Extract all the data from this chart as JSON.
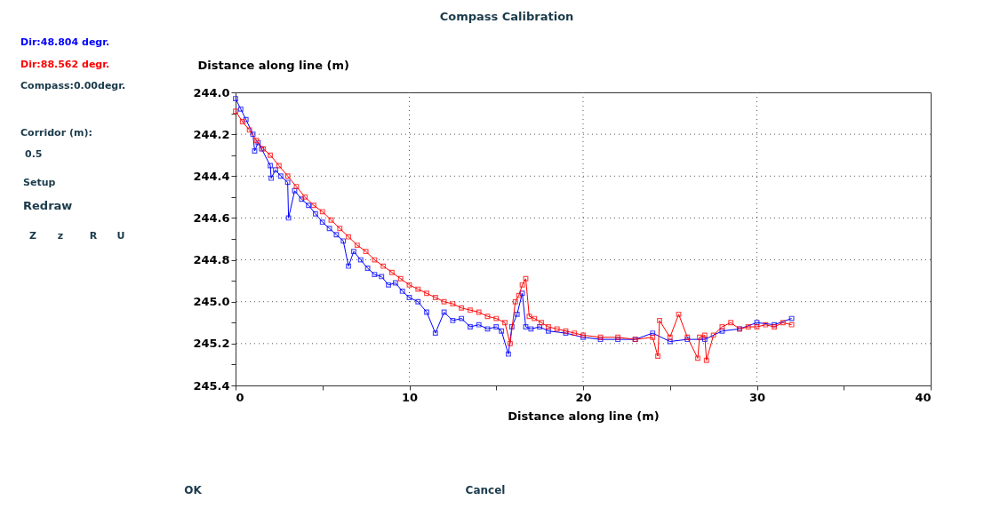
{
  "chart_data": {
    "type": "line",
    "title": "Compass Calibration",
    "xlabel": "Distance along line (m)",
    "ylabel": "Distance along line (m)",
    "xlim": [
      0,
      40
    ],
    "xticks": [
      0,
      {
        "value": 5,
        "label": null
      },
      10,
      {
        "value": 15,
        "label": null
      },
      20,
      {
        "value": 25,
        "label": null
      },
      30,
      {
        "value": 35,
        "label": null
      },
      40
    ],
    "ylim": [
      245.4,
      244.0
    ],
    "yticks": [
      {
        "value": 244.0,
        "label": "244.0"
      },
      {
        "value": 244.1,
        "label": null
      },
      {
        "value": 244.2,
        "label": "244.2"
      },
      {
        "value": 244.3,
        "label": null
      },
      {
        "value": 244.4,
        "label": "244.4"
      },
      {
        "value": 244.5,
        "label": null
      },
      {
        "value": 244.6,
        "label": "244.6"
      },
      {
        "value": 244.7,
        "label": null
      },
      {
        "value": 244.8,
        "label": "244.8"
      },
      {
        "value": 244.9,
        "label": null
      },
      {
        "value": 245.0,
        "label": "245.0"
      },
      {
        "value": 245.1,
        "label": null
      },
      {
        "value": 245.2,
        "label": "245.2"
      },
      {
        "value": 245.3,
        "label": null
      },
      {
        "value": 245.4,
        "label": "245.4"
      }
    ],
    "grid": true,
    "marker": "square",
    "line_style": "solid",
    "series": [
      {
        "name": "Dir:48.804 degr.",
        "color": "#0000ff",
        "x": [
          0,
          0.3,
          0.6,
          1,
          1.1,
          1.3,
          1.5,
          2,
          2.05,
          2.3,
          2.6,
          3,
          3.05,
          3.4,
          3.8,
          4.2,
          4.6,
          5,
          5.4,
          5.8,
          6.2,
          6.5,
          6.8,
          7.2,
          7.6,
          8,
          8.4,
          8.8,
          9.2,
          9.6,
          10,
          10.5,
          11,
          11.5,
          12,
          12.5,
          13,
          13.5,
          14,
          14.5,
          15,
          15.3,
          15.7,
          15.9,
          16.2,
          16.5,
          16.7,
          17,
          17.5,
          18,
          19,
          20,
          21,
          22,
          23,
          24,
          25,
          26,
          27,
          28,
          29,
          30,
          31,
          32
        ],
        "values": [
          244.03,
          244.08,
          244.13,
          244.2,
          244.28,
          244.24,
          244.27,
          244.35,
          244.41,
          244.37,
          244.4,
          244.43,
          244.6,
          244.47,
          244.51,
          244.54,
          244.58,
          244.62,
          244.65,
          244.68,
          244.71,
          244.83,
          244.76,
          244.8,
          244.84,
          244.87,
          244.88,
          244.92,
          244.91,
          244.95,
          244.98,
          245.0,
          245.05,
          245.15,
          245.05,
          245.09,
          245.08,
          245.12,
          245.11,
          245.13,
          245.12,
          245.14,
          245.25,
          245.12,
          245.06,
          244.96,
          245.12,
          245.13,
          245.12,
          245.14,
          245.15,
          245.17,
          245.18,
          245.18,
          245.18,
          245.15,
          245.19,
          245.18,
          245.18,
          245.14,
          245.13,
          245.1,
          245.11,
          245.08
        ]
      },
      {
        "name": "Dir:88.562 degr.",
        "color": "#ff0000",
        "x": [
          0,
          0.4,
          0.8,
          1.2,
          1.6,
          2,
          2.5,
          3,
          3.5,
          4,
          4.5,
          5,
          5.5,
          6,
          6.5,
          7,
          7.5,
          8,
          8.5,
          9,
          9.5,
          10,
          10.5,
          11,
          11.5,
          12,
          12.5,
          13,
          13.5,
          14,
          14.5,
          15,
          15.5,
          15.8,
          16.1,
          16.3,
          16.5,
          16.7,
          16.9,
          17.2,
          17.6,
          18,
          18.5,
          19,
          19.5,
          20,
          21,
          22,
          23,
          24,
          24.3,
          24.4,
          25,
          25.5,
          26,
          26.6,
          26.7,
          27,
          27.1,
          27.5,
          28,
          28.5,
          29,
          29.5,
          30,
          30.5,
          31,
          31.5,
          32
        ],
        "values": [
          244.09,
          244.14,
          244.18,
          244.23,
          244.27,
          244.3,
          244.35,
          244.4,
          244.45,
          244.5,
          244.54,
          244.57,
          244.61,
          244.65,
          244.69,
          244.73,
          244.76,
          244.8,
          244.83,
          244.86,
          244.89,
          244.92,
          244.94,
          244.96,
          244.98,
          245.0,
          245.01,
          245.03,
          245.04,
          245.05,
          245.07,
          245.08,
          245.1,
          245.2,
          245.0,
          244.97,
          244.92,
          244.89,
          245.07,
          245.08,
          245.1,
          245.12,
          245.13,
          245.14,
          245.15,
          245.16,
          245.17,
          245.17,
          245.18,
          245.17,
          245.26,
          245.09,
          245.17,
          245.06,
          245.17,
          245.27,
          245.17,
          245.16,
          245.28,
          245.16,
          245.12,
          245.1,
          245.13,
          245.12,
          245.12,
          245.11,
          245.12,
          245.1,
          245.11
        ]
      }
    ],
    "annotations": [
      "Compass:0.00degr.",
      "Corridor (m):",
      "0.5",
      "Setup",
      "Redraw",
      "Z",
      "z",
      "R",
      "U",
      "OK",
      "Cancel"
    ]
  }
}
